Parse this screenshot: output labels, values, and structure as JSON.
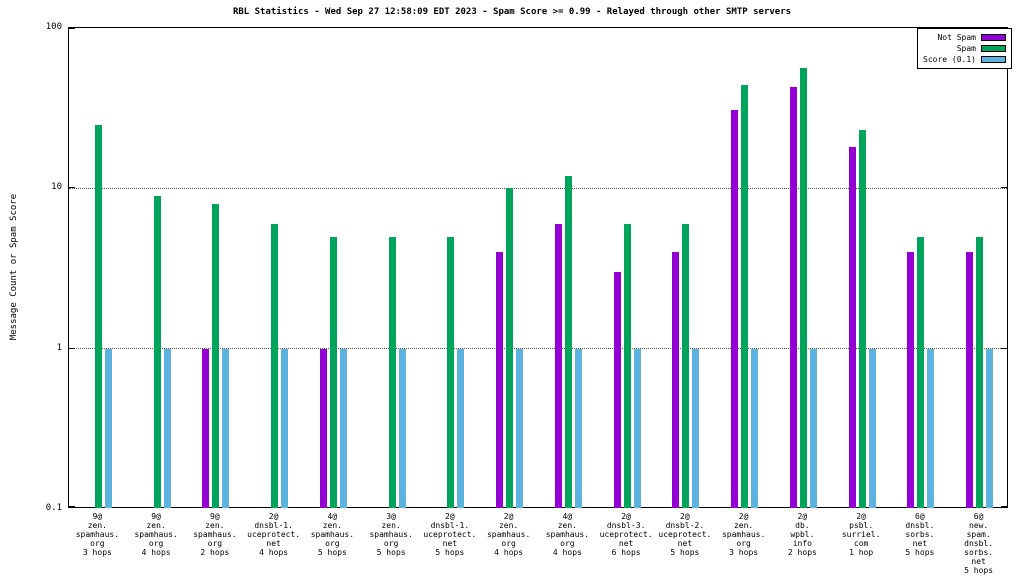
{
  "chart_data": {
    "type": "bar",
    "title": "RBL Statistics - Wed Sep 27 12:58:09 EDT 2023 - Spam Score >= 0.99 - Relayed through other SMTP servers",
    "ylabel": "Message Count or Spam Score",
    "xlabel": "",
    "yscale": "log",
    "ylim": [
      0.1,
      100
    ],
    "yticks": [
      "100",
      "10",
      "1",
      "0.1"
    ],
    "gridlines": [
      10,
      1
    ],
    "legend_position": "top-right",
    "grid": true,
    "categories": [
      [
        "9@",
        "zen.",
        "spamhaus.",
        "org",
        "3 hops"
      ],
      [
        "9@",
        "zen.",
        "spamhaus.",
        "org",
        "4 hops"
      ],
      [
        "9@",
        "zen.",
        "spamhaus.",
        "org",
        "2 hops"
      ],
      [
        "2@",
        "dnsbl-1.",
        "uceprotect.",
        "net",
        "4 hops"
      ],
      [
        "4@",
        "zen.",
        "spamhaus.",
        "org",
        "5 hops"
      ],
      [
        "3@",
        "zen.",
        "spamhaus.",
        "org",
        "5 hops"
      ],
      [
        "2@",
        "dnsbl-1.",
        "uceprotect.",
        "net",
        "5 hops"
      ],
      [
        "2@",
        "zen.",
        "spamhaus.",
        "org",
        "4 hops"
      ],
      [
        "4@",
        "zen.",
        "spamhaus.",
        "org",
        "4 hops"
      ],
      [
        "2@",
        "dnsbl-3.",
        "uceprotect.",
        "net",
        "6 hops"
      ],
      [
        "2@",
        "dnsbl-2.",
        "uceprotect.",
        "net",
        "5 hops"
      ],
      [
        "2@",
        "zen.",
        "spamhaus.",
        "org",
        "3 hops"
      ],
      [
        "2@",
        "db.",
        "wpbl.",
        "info",
        "2 hops"
      ],
      [
        "2@",
        "psbl.",
        "surriel.",
        "com",
        "1 hop"
      ],
      [
        "6@",
        "dnsbl.",
        "sorbs.",
        "net",
        "5 hops"
      ],
      [
        "6@",
        "new.",
        "spam.",
        "dnsbl.",
        "sorbs.",
        "net",
        "5 hops"
      ]
    ],
    "series": [
      {
        "name": "Not Spam",
        "color": "#9400d3",
        "values": [
          null,
          null,
          1,
          null,
          1,
          null,
          null,
          4,
          6,
          3,
          4,
          31,
          43,
          18,
          4,
          4
        ]
      },
      {
        "name": "Spam",
        "color": "#00a45a",
        "values": [
          25,
          9,
          8,
          6,
          5,
          5,
          5,
          10,
          12,
          6,
          6,
          44,
          56,
          23,
          5,
          5
        ]
      },
      {
        "name": "Score (0.1)",
        "color": "#5db3e0",
        "values": [
          1,
          1,
          1,
          1,
          1,
          1,
          1,
          1,
          1,
          1,
          1,
          1,
          1,
          1,
          1,
          1
        ]
      }
    ]
  }
}
